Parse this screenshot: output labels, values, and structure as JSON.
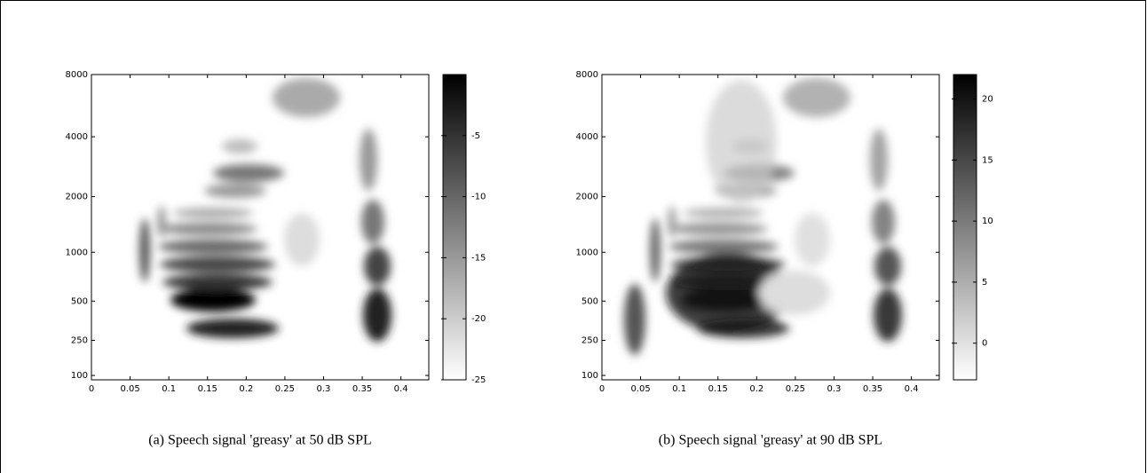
{
  "chart_data": [
    {
      "type": "heatmap",
      "caption": "(a) Speech signal 'greasy' at 50 dB SPL",
      "xlim": [
        0,
        0.436
      ],
      "xticks": [
        0,
        0.05,
        0.1,
        0.15,
        0.2,
        0.25,
        0.3,
        0.35,
        0.4
      ],
      "yscale": "erb",
      "ylim": [
        85,
        8000
      ],
      "yticks": [
        100,
        250,
        500,
        1000,
        2000,
        4000,
        8000
      ],
      "colormap": "gray_r",
      "clim": [
        -25,
        0
      ],
      "cticks": [
        -25,
        -20,
        -15,
        -10,
        -5
      ]
    },
    {
      "type": "heatmap",
      "caption": "(b) Speech signal 'greasy' at 90 dB SPL",
      "xlim": [
        0,
        0.436
      ],
      "xticks": [
        0,
        0.05,
        0.1,
        0.15,
        0.2,
        0.25,
        0.3,
        0.35,
        0.4
      ],
      "yscale": "erb",
      "ylim": [
        85,
        8000
      ],
      "yticks": [
        100,
        250,
        500,
        1000,
        2000,
        4000,
        8000
      ],
      "colormap": "gray_r",
      "clim": [
        -3,
        22
      ],
      "cticks": [
        0,
        5,
        10,
        15,
        20
      ]
    }
  ]
}
